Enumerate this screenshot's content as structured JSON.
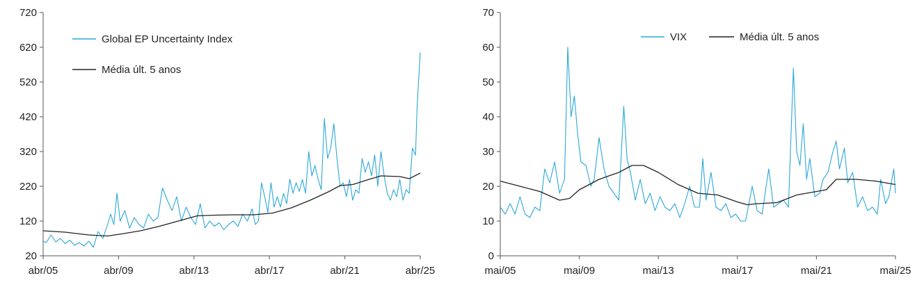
{
  "chart_data": [
    {
      "type": "line",
      "title": "",
      "xlabel": "",
      "ylabel": "",
      "ylim": [
        20,
        720
      ],
      "xlim": [
        "2005-04",
        "2025-04"
      ],
      "x_ticks": [
        "abr/05",
        "abr/09",
        "abr/13",
        "abr/17",
        "abr/21",
        "abr/25"
      ],
      "y_ticks": [
        "20",
        "120",
        "220",
        "320",
        "420",
        "520",
        "620",
        "720"
      ],
      "grid": false,
      "legend_position": "top-left",
      "series": [
        {
          "name": "Global EP Uncertainty Index",
          "color": "#2aa7d8",
          "points": [
            [
              "2005-04",
              62
            ],
            [
              "2005-06",
              58
            ],
            [
              "2005-09",
              80
            ],
            [
              "2005-12",
              60
            ],
            [
              "2006-03",
              70
            ],
            [
              "2006-06",
              55
            ],
            [
              "2006-09",
              65
            ],
            [
              "2006-12",
              50
            ],
            [
              "2007-03",
              58
            ],
            [
              "2007-06",
              48
            ],
            [
              "2007-09",
              62
            ],
            [
              "2007-12",
              45
            ],
            [
              "2008-03",
              90
            ],
            [
              "2008-06",
              70
            ],
            [
              "2008-09",
              110
            ],
            [
              "2008-11",
              140
            ],
            [
              "2009-01",
              110
            ],
            [
              "2009-03",
              200
            ],
            [
              "2009-05",
              120
            ],
            [
              "2009-08",
              150
            ],
            [
              "2009-11",
              100
            ],
            [
              "2010-02",
              130
            ],
            [
              "2010-05",
              110
            ],
            [
              "2010-08",
              100
            ],
            [
              "2010-11",
              140
            ],
            [
              "2011-02",
              120
            ],
            [
              "2011-05",
              130
            ],
            [
              "2011-08",
              215
            ],
            [
              "2011-11",
              180
            ],
            [
              "2012-02",
              150
            ],
            [
              "2012-05",
              190
            ],
            [
              "2012-08",
              120
            ],
            [
              "2012-11",
              160
            ],
            [
              "2013-02",
              130
            ],
            [
              "2013-05",
              110
            ],
            [
              "2013-08",
              170
            ],
            [
              "2013-11",
              100
            ],
            [
              "2014-02",
              120
            ],
            [
              "2014-05",
              105
            ],
            [
              "2014-08",
              115
            ],
            [
              "2014-11",
              95
            ],
            [
              "2015-02",
              110
            ],
            [
              "2015-05",
              120
            ],
            [
              "2015-08",
              105
            ],
            [
              "2015-11",
              140
            ],
            [
              "2016-02",
              120
            ],
            [
              "2016-05",
              155
            ],
            [
              "2016-07",
              110
            ],
            [
              "2016-09",
              120
            ],
            [
              "2016-11",
              230
            ],
            [
              "2017-01",
              190
            ],
            [
              "2017-03",
              145
            ],
            [
              "2017-05",
              230
            ],
            [
              "2017-07",
              160
            ],
            [
              "2017-09",
              190
            ],
            [
              "2017-11",
              160
            ],
            [
              "2018-01",
              200
            ],
            [
              "2018-03",
              170
            ],
            [
              "2018-05",
              240
            ],
            [
              "2018-07",
              200
            ],
            [
              "2018-09",
              230
            ],
            [
              "2018-11",
              205
            ],
            [
              "2019-01",
              240
            ],
            [
              "2019-03",
              200
            ],
            [
              "2019-05",
              320
            ],
            [
              "2019-07",
              250
            ],
            [
              "2019-09",
              280
            ],
            [
              "2019-11",
              240
            ],
            [
              "2020-01",
              210
            ],
            [
              "2020-03",
              415
            ],
            [
              "2020-05",
              300
            ],
            [
              "2020-07",
              330
            ],
            [
              "2020-09",
              400
            ],
            [
              "2020-11",
              300
            ],
            [
              "2021-01",
              220
            ],
            [
              "2021-03",
              230
            ],
            [
              "2021-05",
              190
            ],
            [
              "2021-07",
              240
            ],
            [
              "2021-09",
              180
            ],
            [
              "2021-11",
              210
            ],
            [
              "2022-01",
              200
            ],
            [
              "2022-03",
              300
            ],
            [
              "2022-05",
              260
            ],
            [
              "2022-07",
              290
            ],
            [
              "2022-09",
              250
            ],
            [
              "2022-11",
              310
            ],
            [
              "2023-01",
              220
            ],
            [
              "2023-03",
              320
            ],
            [
              "2023-05",
              250
            ],
            [
              "2023-07",
              200
            ],
            [
              "2023-09",
              180
            ],
            [
              "2023-11",
              210
            ],
            [
              "2024-01",
              190
            ],
            [
              "2024-03",
              240
            ],
            [
              "2024-05",
              180
            ],
            [
              "2024-07",
              210
            ],
            [
              "2024-09",
              200
            ],
            [
              "2024-11",
              330
            ],
            [
              "2025-01",
              310
            ],
            [
              "2025-02",
              450
            ],
            [
              "2025-04",
              605
            ]
          ]
        },
        {
          "name": "Média últ. 5 anos",
          "color": "#222222",
          "points": [
            [
              "2005-04",
              92
            ],
            [
              "2006-06",
              88
            ],
            [
              "2007-09",
              80
            ],
            [
              "2008-09",
              77
            ],
            [
              "2009-06",
              83
            ],
            [
              "2010-06",
              92
            ],
            [
              "2011-06",
              105
            ],
            [
              "2012-06",
              120
            ],
            [
              "2013-06",
              135
            ],
            [
              "2014-06",
              137
            ],
            [
              "2015-06",
              138
            ],
            [
              "2016-06",
              138
            ],
            [
              "2017-06",
              143
            ],
            [
              "2018-06",
              158
            ],
            [
              "2019-06",
              180
            ],
            [
              "2020-06",
              205
            ],
            [
              "2021-01",
              222
            ],
            [
              "2021-09",
              225
            ],
            [
              "2022-06",
              238
            ],
            [
              "2023-03",
              250
            ],
            [
              "2024-03",
              248
            ],
            [
              "2024-09",
              242
            ],
            [
              "2025-04",
              258
            ]
          ]
        }
      ]
    },
    {
      "type": "line",
      "title": "",
      "xlabel": "",
      "ylabel": "",
      "ylim": [
        0,
        70
      ],
      "xlim": [
        "2005-05",
        "2025-05"
      ],
      "x_ticks": [
        "mai/05",
        "mai/09",
        "mai/13",
        "mai/17",
        "mai/21",
        "mai/25"
      ],
      "y_ticks": [
        "0",
        "10",
        "20",
        "30",
        "40",
        "50",
        "60",
        "70"
      ],
      "grid": false,
      "legend_position": "top-center",
      "series": [
        {
          "name": "VIX",
          "color": "#2aa7d8",
          "points": [
            [
              "2005-05",
              14
            ],
            [
              "2005-08",
              12
            ],
            [
              "2005-11",
              15
            ],
            [
              "2006-02",
              12
            ],
            [
              "2006-05",
              17
            ],
            [
              "2006-08",
              12
            ],
            [
              "2006-11",
              11
            ],
            [
              "2007-02",
              14
            ],
            [
              "2007-05",
              13
            ],
            [
              "2007-08",
              25
            ],
            [
              "2007-11",
              21
            ],
            [
              "2008-02",
              27
            ],
            [
              "2008-05",
              18
            ],
            [
              "2008-08",
              22
            ],
            [
              "2008-10",
              60
            ],
            [
              "2008-12",
              40
            ],
            [
              "2009-02",
              46
            ],
            [
              "2009-04",
              35
            ],
            [
              "2009-06",
              27
            ],
            [
              "2009-09",
              26
            ],
            [
              "2009-12",
              20
            ],
            [
              "2010-02",
              22
            ],
            [
              "2010-05",
              34
            ],
            [
              "2010-08",
              25
            ],
            [
              "2010-11",
              20
            ],
            [
              "2011-02",
              18
            ],
            [
              "2011-05",
              16
            ],
            [
              "2011-08",
              43
            ],
            [
              "2011-10",
              28
            ],
            [
              "2011-12",
              24
            ],
            [
              "2012-03",
              16
            ],
            [
              "2012-06",
              22
            ],
            [
              "2012-09",
              15
            ],
            [
              "2012-12",
              18
            ],
            [
              "2013-03",
              13
            ],
            [
              "2013-06",
              17
            ],
            [
              "2013-09",
              14
            ],
            [
              "2013-12",
              13
            ],
            [
              "2014-03",
              15
            ],
            [
              "2014-06",
              11
            ],
            [
              "2014-09",
              15
            ],
            [
              "2014-12",
              20
            ],
            [
              "2015-03",
              14
            ],
            [
              "2015-06",
              14
            ],
            [
              "2015-08",
              28
            ],
            [
              "2015-10",
              16
            ],
            [
              "2016-01",
              24
            ],
            [
              "2016-04",
              14
            ],
            [
              "2016-07",
              13
            ],
            [
              "2016-10",
              15
            ],
            [
              "2017-01",
              11
            ],
            [
              "2017-04",
              12
            ],
            [
              "2017-07",
              10
            ],
            [
              "2017-10",
              10
            ],
            [
              "2018-02",
              20
            ],
            [
              "2018-05",
              13
            ],
            [
              "2018-08",
              12
            ],
            [
              "2018-12",
              25
            ],
            [
              "2019-03",
              14
            ],
            [
              "2019-06",
              15
            ],
            [
              "2019-09",
              16
            ],
            [
              "2019-12",
              14
            ],
            [
              "2020-03",
              54
            ],
            [
              "2020-05",
              30
            ],
            [
              "2020-07",
              26
            ],
            [
              "2020-09",
              38
            ],
            [
              "2020-11",
              22
            ],
            [
              "2021-01",
              28
            ],
            [
              "2021-04",
              17
            ],
            [
              "2021-07",
              18
            ],
            [
              "2021-09",
              22
            ],
            [
              "2021-12",
              24
            ],
            [
              "2022-03",
              30
            ],
            [
              "2022-05",
              33
            ],
            [
              "2022-07",
              25
            ],
            [
              "2022-10",
              31
            ],
            [
              "2022-12",
              21
            ],
            [
              "2023-03",
              24
            ],
            [
              "2023-06",
              14
            ],
            [
              "2023-09",
              17
            ],
            [
              "2023-12",
              13
            ],
            [
              "2024-03",
              14
            ],
            [
              "2024-06",
              12
            ],
            [
              "2024-08",
              22
            ],
            [
              "2024-11",
              15
            ],
            [
              "2025-01",
              17
            ],
            [
              "2025-04",
              25
            ],
            [
              "2025-05",
              18
            ]
          ]
        },
        {
          "name": "Média últ. 5 anos",
          "color": "#222222",
          "points": [
            [
              "2005-05",
              21.5
            ],
            [
              "2006-05",
              20
            ],
            [
              "2007-05",
              18.5
            ],
            [
              "2008-05",
              16
            ],
            [
              "2008-11",
              16.5
            ],
            [
              "2009-05",
              19
            ],
            [
              "2010-05",
              22
            ],
            [
              "2011-05",
              24
            ],
            [
              "2012-01",
              26
            ],
            [
              "2012-08",
              26
            ],
            [
              "2013-05",
              24
            ],
            [
              "2014-05",
              20.5
            ],
            [
              "2015-05",
              18
            ],
            [
              "2016-05",
              17.5
            ],
            [
              "2017-05",
              15.5
            ],
            [
              "2017-11",
              14.7
            ],
            [
              "2018-05",
              15
            ],
            [
              "2019-05",
              15.3
            ],
            [
              "2020-05",
              17.5
            ],
            [
              "2021-05",
              18.5
            ],
            [
              "2021-11",
              19
            ],
            [
              "2022-05",
              22
            ],
            [
              "2023-05",
              22
            ],
            [
              "2024-05",
              21.5
            ],
            [
              "2025-05",
              20.5
            ]
          ]
        }
      ]
    }
  ]
}
